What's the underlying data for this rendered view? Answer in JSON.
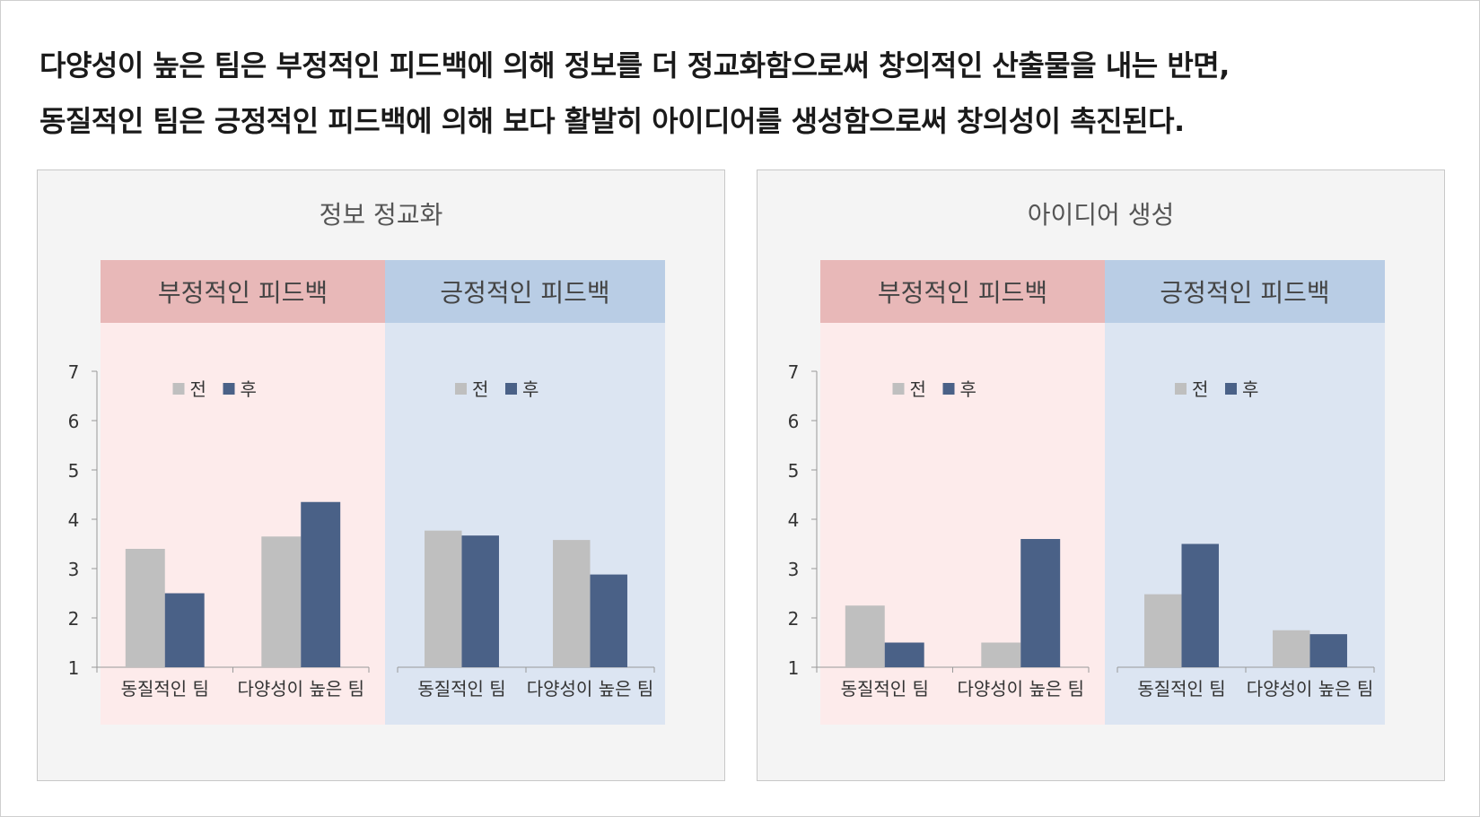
{
  "headline": {
    "line1": "다양성이 높은 팀은 부정적인 피드백에 의해 정보를 더 정교화함으로써 창의적인 산출물을 내는 반면,",
    "line2": "동질적인 팀은 긍정적인 피드백에 의해 보다 활발히 아이디어를 생성함으로써 창의성이 촉진된다."
  },
  "colors": {
    "before": "#bfbfbf",
    "after": "#4a6187",
    "negative_header": "#e8b8b8",
    "negative_bg": "#fdebeb",
    "positive_header": "#b9cde5",
    "positive_bg": "#dce5f2"
  },
  "chart_data": [
    {
      "type": "bar",
      "title": "정보 정교화",
      "ylim": [
        1,
        7
      ],
      "yticks": [
        "1",
        "2",
        "3",
        "4",
        "5",
        "6",
        "7"
      ],
      "legend": [
        "전",
        "후"
      ],
      "groups": [
        {
          "label": "부정적인 피드백",
          "theme": "negative",
          "categories": [
            "동질적인 팀",
            "다양성이 높은 팀"
          ],
          "series": [
            {
              "name": "전",
              "values": [
                3.4,
                3.65
              ]
            },
            {
              "name": "후",
              "values": [
                2.5,
                4.35
              ]
            }
          ]
        },
        {
          "label": "긍정적인 피드백",
          "theme": "positive",
          "categories": [
            "동질적인 팀",
            "다양성이 높은 팀"
          ],
          "series": [
            {
              "name": "전",
              "values": [
                3.77,
                3.58
              ]
            },
            {
              "name": "후",
              "values": [
                3.67,
                2.88
              ]
            }
          ]
        }
      ]
    },
    {
      "type": "bar",
      "title": "아이디어 생성",
      "ylim": [
        1,
        7
      ],
      "yticks": [
        "1",
        "2",
        "3",
        "4",
        "5",
        "6",
        "7"
      ],
      "legend": [
        "전",
        "후"
      ],
      "groups": [
        {
          "label": "부정적인 피드백",
          "theme": "negative",
          "categories": [
            "동질적인 팀",
            "다양성이 높은 팀"
          ],
          "series": [
            {
              "name": "전",
              "values": [
                2.25,
                1.5
              ]
            },
            {
              "name": "후",
              "values": [
                1.5,
                3.6
              ]
            }
          ]
        },
        {
          "label": "긍정적인 피드백",
          "theme": "positive",
          "categories": [
            "동질적인 팀",
            "다양성이 높은 팀"
          ],
          "series": [
            {
              "name": "전",
              "values": [
                2.48,
                1.75
              ]
            },
            {
              "name": "후",
              "values": [
                3.5,
                1.67
              ]
            }
          ]
        }
      ]
    }
  ]
}
